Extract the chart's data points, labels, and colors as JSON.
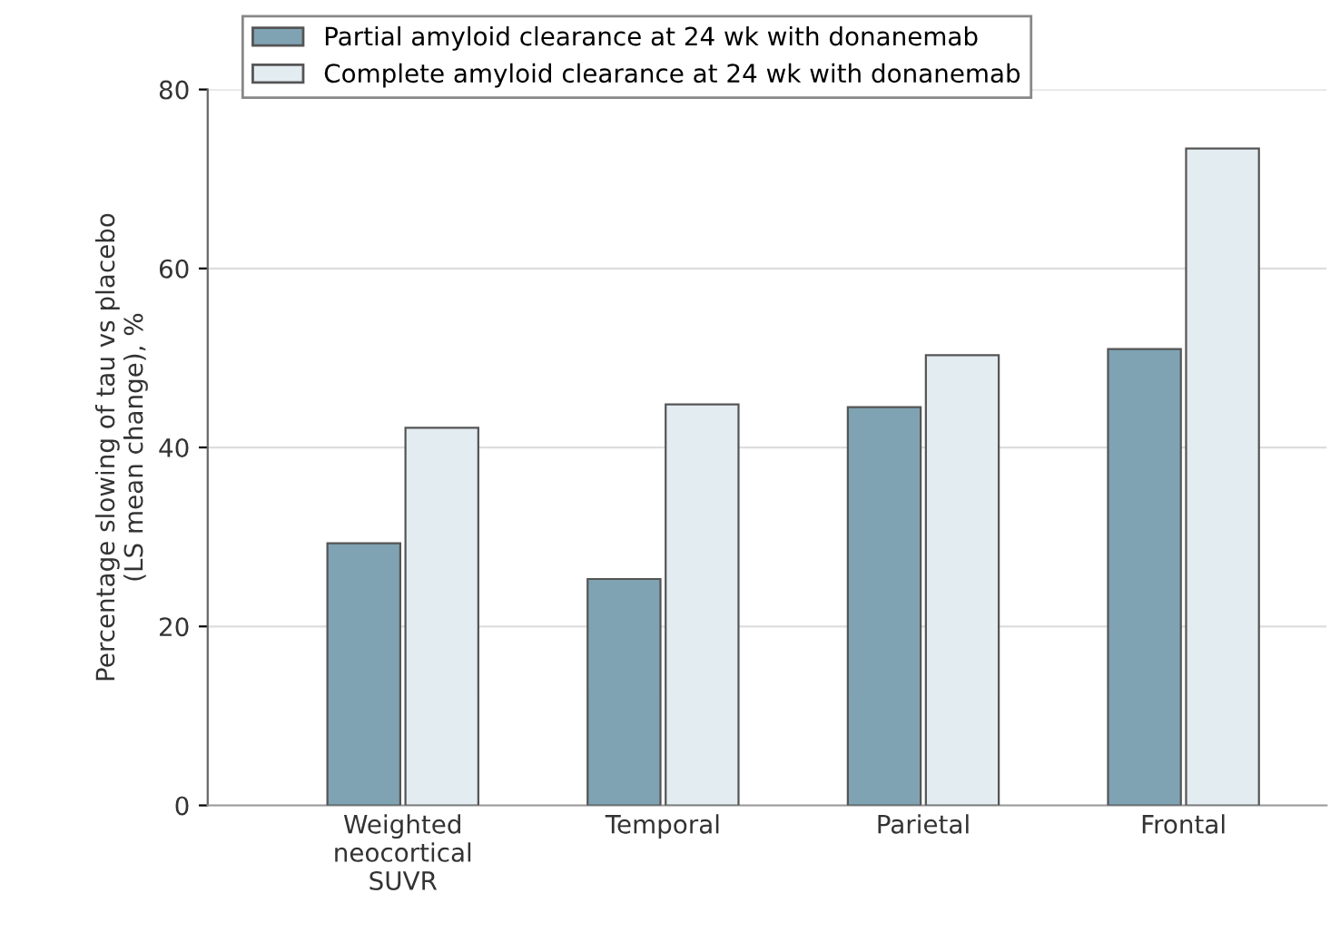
{
  "chart_data": {
    "type": "bar",
    "ylabel": "Percentage slowing of tau vs placebo\n(LS mean change), %",
    "categories": [
      "Weighted\nneocortical\nSUVR",
      "Temporal",
      "Parietal",
      "Frontal"
    ],
    "series": [
      {
        "name": "Partial amyloid clearance at 24 wk with donanemab",
        "color": "#7fa3b3",
        "values": [
          29.3,
          25.3,
          44.5,
          51.0
        ]
      },
      {
        "name": "Complete amyloid clearance at 24 wk with donanemab",
        "color": "#e3ecf1",
        "values": [
          42.2,
          44.8,
          50.3,
          73.4
        ]
      }
    ],
    "ylim": [
      0,
      80
    ],
    "yticks": [
      0,
      20,
      40,
      60,
      80
    ],
    "grid": "y",
    "legend": "top left"
  }
}
